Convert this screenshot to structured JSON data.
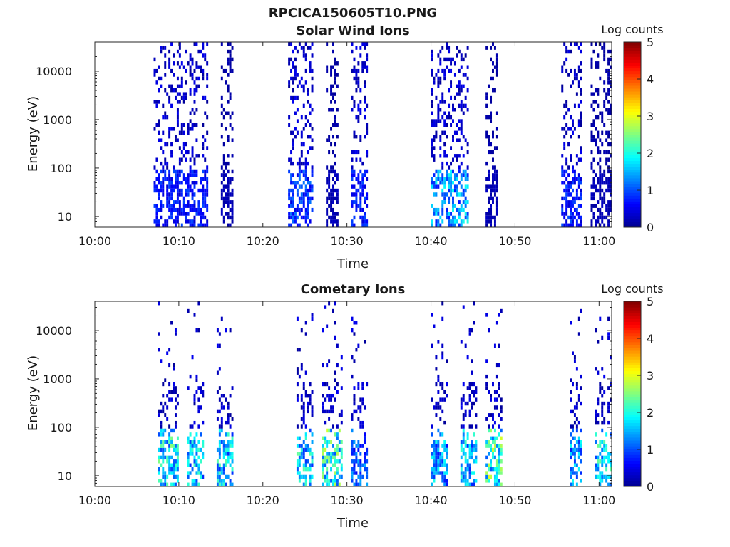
{
  "figure": {
    "filename": "RPCICA150605T10.PNG"
  },
  "colormap": {
    "name": "jet",
    "stops": [
      "#00008f",
      "#0000ff",
      "#0080ff",
      "#00ffff",
      "#80ff80",
      "#ffff00",
      "#ff8000",
      "#ff0000",
      "#800000"
    ]
  },
  "chart_data": [
    {
      "type": "heatmap",
      "title": "Solar Wind Ions",
      "xlabel": "Time",
      "ylabel": "Energy (eV)",
      "x_ticks": [
        "10:00",
        "10:10",
        "10:20",
        "10:30",
        "10:40",
        "10:50",
        "11:00"
      ],
      "x_tick_minutes": [
        0,
        10,
        20,
        30,
        40,
        50,
        60
      ],
      "xlim_minutes": [
        0,
        61.5
      ],
      "y_scale": "log",
      "y_ticks": [
        "10",
        "100",
        "1000",
        "10000"
      ],
      "y_tick_values": [
        10,
        100,
        1000,
        10000
      ],
      "ylim": [
        6,
        40000
      ],
      "colorbar": {
        "label": "Log counts",
        "ticks": [
          "0",
          "1",
          "2",
          "3",
          "4",
          "5"
        ],
        "range": [
          0,
          5
        ]
      },
      "bursts": [
        {
          "start_min": 7.0,
          "end_min": 13.5,
          "log_counts_max": 1.0
        },
        {
          "start_min": 15.0,
          "end_min": 16.3,
          "log_counts_max": 0.3
        },
        {
          "start_min": 23.0,
          "end_min": 25.8,
          "log_counts_max": 1.2
        },
        {
          "start_min": 27.5,
          "end_min": 29.0,
          "log_counts_max": 0.3
        },
        {
          "start_min": 30.5,
          "end_min": 32.5,
          "log_counts_max": 1.0
        },
        {
          "start_min": 40.0,
          "end_min": 44.5,
          "log_counts_max": 2.0
        },
        {
          "start_min": 46.5,
          "end_min": 48.0,
          "log_counts_max": 0.3
        },
        {
          "start_min": 55.5,
          "end_min": 58.0,
          "log_counts_max": 1.0
        },
        {
          "start_min": 59.0,
          "end_min": 61.3,
          "log_counts_max": 0.3
        }
      ]
    },
    {
      "type": "heatmap",
      "title": "Cometary Ions",
      "xlabel": "Time",
      "ylabel": "Energy (eV)",
      "x_ticks": [
        "10:00",
        "10:10",
        "10:20",
        "10:30",
        "10:40",
        "10:50",
        "11:00"
      ],
      "x_tick_minutes": [
        0,
        10,
        20,
        30,
        40,
        50,
        60
      ],
      "xlim_minutes": [
        0,
        61.5
      ],
      "y_scale": "log",
      "y_ticks": [
        "10",
        "100",
        "1000",
        "10000"
      ],
      "y_tick_values": [
        10,
        100,
        1000,
        10000
      ],
      "ylim": [
        6,
        40000
      ],
      "colorbar": {
        "label": "Log counts",
        "ticks": [
          "0",
          "1",
          "2",
          "3",
          "4",
          "5"
        ],
        "range": [
          0,
          5
        ]
      },
      "bursts": [
        {
          "start_min": 7.5,
          "end_min": 10.0,
          "log_counts_max": 2.6
        },
        {
          "start_min": 11.0,
          "end_min": 13.0,
          "log_counts_max": 2.2
        },
        {
          "start_min": 14.5,
          "end_min": 16.3,
          "log_counts_max": 2.3
        },
        {
          "start_min": 24.0,
          "end_min": 25.8,
          "log_counts_max": 2.4
        },
        {
          "start_min": 27.0,
          "end_min": 29.5,
          "log_counts_max": 3.0
        },
        {
          "start_min": 30.5,
          "end_min": 32.5,
          "log_counts_max": 1.5
        },
        {
          "start_min": 40.0,
          "end_min": 42.0,
          "log_counts_max": 2.0
        },
        {
          "start_min": 43.5,
          "end_min": 45.5,
          "log_counts_max": 2.2
        },
        {
          "start_min": 46.5,
          "end_min": 48.5,
          "log_counts_max": 3.0
        },
        {
          "start_min": 56.5,
          "end_min": 58.0,
          "log_counts_max": 2.0
        },
        {
          "start_min": 59.5,
          "end_min": 61.3,
          "log_counts_max": 2.5
        }
      ]
    }
  ]
}
